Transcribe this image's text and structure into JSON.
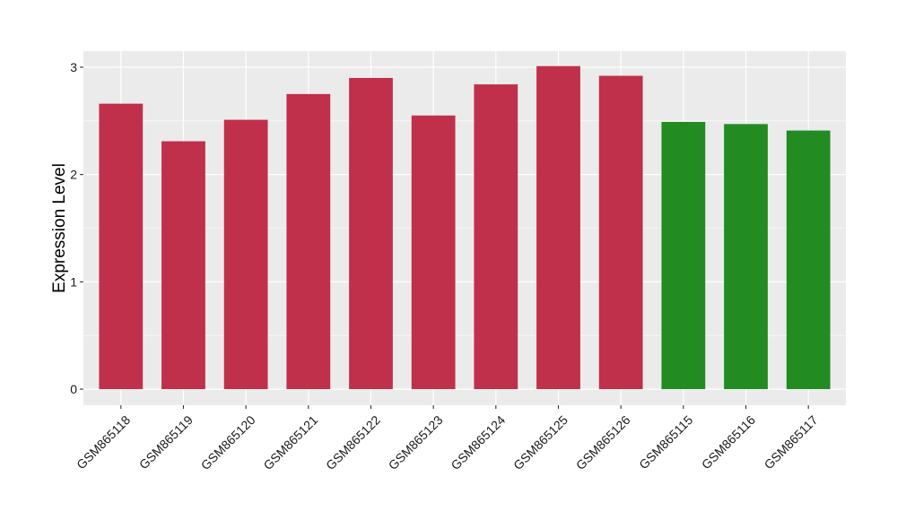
{
  "chart_data": {
    "type": "bar",
    "title": "",
    "xlabel": "",
    "ylabel": "Expression Level",
    "ylim": [
      -0.15,
      3.15
    ],
    "y_ticks": [
      0,
      1,
      2,
      3
    ],
    "grid": true,
    "legend": "none",
    "categories": [
      "GSM865118",
      "GSM865119",
      "GSM865120",
      "GSM865121",
      "GSM865122",
      "GSM865123",
      "GSM865124",
      "GSM865125",
      "GSM865126",
      "GSM865115",
      "GSM865116",
      "GSM865117"
    ],
    "values": [
      2.66,
      2.31,
      2.51,
      2.75,
      2.9,
      2.55,
      2.84,
      3.01,
      2.92,
      2.49,
      2.47,
      2.41
    ],
    "bar_colors": [
      "#c0304a",
      "#c0304a",
      "#c0304a",
      "#c0304a",
      "#c0304a",
      "#c0304a",
      "#c0304a",
      "#c0304a",
      "#c0304a",
      "#228b22",
      "#228b22",
      "#228b22"
    ],
    "panel_background": "#ebebeb",
    "grid_color": "#ffffff"
  }
}
